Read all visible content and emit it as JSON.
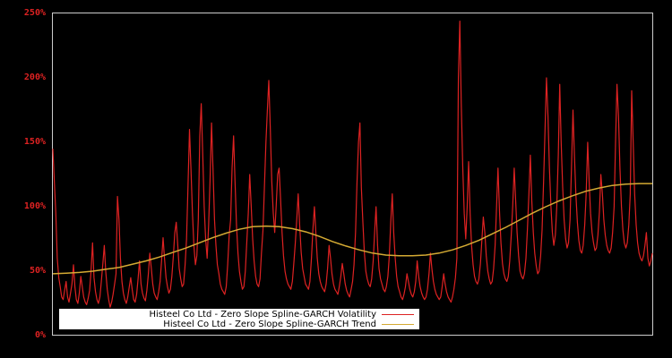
{
  "chart_data": {
    "type": "line",
    "title": "",
    "xlabel": "",
    "ylabel": "",
    "ylim": [
      0,
      250
    ],
    "y_ticks": [
      "0%",
      "50%",
      "100%",
      "150%",
      "200%",
      "250%"
    ],
    "grid": false,
    "legend_position": "bottom-left inside plot",
    "background": "#000000",
    "axis_color": "#cccccc",
    "tick_label_color": "#dd2222",
    "series": [
      {
        "name": "Histeel Co Ltd - Zero Slope Spline-GARCH Volatility",
        "color": "#dd2222",
        "values": [
          145,
          120,
          95,
          60,
          45,
          38,
          30,
          28,
          35,
          42,
          30,
          26,
          33,
          40,
          55,
          38,
          28,
          25,
          33,
          46,
          38,
          30,
          26,
          24,
          29,
          35,
          50,
          72,
          45,
          34,
          28,
          25,
          30,
          42,
          56,
          70,
          50,
          36,
          28,
          22,
          26,
          32,
          40,
          48,
          108,
          90,
          60,
          42,
          33,
          28,
          25,
          30,
          38,
          45,
          36,
          28,
          26,
          32,
          44,
          58,
          40,
          33,
          29,
          27,
          35,
          48,
          64,
          52,
          40,
          33,
          30,
          28,
          34,
          42,
          58,
          76,
          60,
          45,
          38,
          33,
          36,
          46,
          62,
          80,
          88,
          70,
          52,
          44,
          38,
          40,
          55,
          75,
          118,
          160,
          130,
          95,
          70,
          55,
          62,
          90,
          155,
          180,
          140,
          100,
          75,
          60,
          85,
          120,
          165,
          130,
          90,
          70,
          55,
          48,
          40,
          36,
          34,
          32,
          38,
          55,
          78,
          90,
          130,
          155,
          120,
          85,
          64,
          50,
          42,
          36,
          38,
          50,
          72,
          95,
          125,
          100,
          75,
          58,
          46,
          40,
          38,
          44,
          64,
          82,
          115,
          150,
          175,
          198,
          160,
          120,
          95,
          80,
          100,
          125,
          130,
          105,
          80,
          62,
          50,
          44,
          40,
          38,
          36,
          42,
          56,
          72,
          90,
          110,
          85,
          65,
          52,
          46,
          40,
          38,
          36,
          42,
          60,
          82,
          100,
          80,
          60,
          48,
          42,
          38,
          36,
          34,
          40,
          52,
          70,
          60,
          48,
          40,
          36,
          34,
          32,
          38,
          46,
          56,
          48,
          40,
          35,
          32,
          30,
          36,
          42,
          55,
          80,
          118,
          150,
          165,
          115,
          88,
          65,
          50,
          44,
          40,
          38,
          44,
          58,
          80,
          100,
          70,
          52,
          44,
          40,
          36,
          34,
          38,
          46,
          62,
          88,
          110,
          80,
          60,
          46,
          38,
          34,
          30,
          28,
          32,
          38,
          48,
          42,
          36,
          32,
          30,
          34,
          42,
          58,
          46,
          38,
          33,
          30,
          28,
          30,
          36,
          48,
          64,
          52,
          42,
          36,
          32,
          30,
          28,
          30,
          38,
          48,
          40,
          34,
          30,
          28,
          26,
          30,
          36,
          45,
          60,
          200,
          244,
          180,
          130,
          95,
          75,
          100,
          135,
          95,
          70,
          55,
          46,
          42,
          40,
          44,
          56,
          74,
          92,
          80,
          62,
          50,
          44,
          40,
          42,
          52,
          70,
          100,
          130,
          96,
          72,
          56,
          48,
          44,
          42,
          46,
          58,
          78,
          100,
          130,
          105,
          80,
          62,
          50,
          46,
          44,
          48,
          60,
          82,
          110,
          140,
          105,
          80,
          64,
          54,
          48,
          50,
          62,
          82,
          120,
          160,
          200,
          170,
          130,
          100,
          80,
          70,
          78,
          100,
          140,
          195,
          150,
          115,
          90,
          75,
          68,
          72,
          90,
          130,
          175,
          140,
          110,
          88,
          74,
          66,
          64,
          70,
          86,
          110,
          150,
          120,
          95,
          80,
          72,
          66,
          68,
          78,
          96,
          125,
          110,
          90,
          78,
          70,
          66,
          64,
          68,
          80,
          100,
          150,
          195,
          170,
          130,
          100,
          82,
          72,
          68,
          72,
          86,
          110,
          190,
          150,
          110,
          86,
          72,
          64,
          60,
          58,
          62,
          70,
          80,
          60,
          54,
          58,
          64
        ]
      },
      {
        "name": "Histeel Co Ltd - Zero Slope Spline-GARCH Trend",
        "color": "#d4aa33",
        "values": [
          48,
          48.5,
          49,
          50,
          51.5,
          53,
          55.5,
          58,
          61,
          64.5,
          68,
          72,
          76,
          79.5,
          82.5,
          84.5,
          85,
          84.5,
          83,
          80.5,
          77,
          73,
          69.5,
          66.5,
          64,
          62.5,
          62,
          62,
          62.5,
          64,
          66.5,
          70,
          74,
          79,
          84,
          89.5,
          95,
          100,
          104.5,
          108.5,
          112,
          114.5,
          116.5,
          117.5,
          118,
          118
        ]
      }
    ]
  },
  "legend": {
    "items": [
      {
        "label": "Histeel Co Ltd - Zero Slope Spline-GARCH Volatility",
        "color": "#dd2222"
      },
      {
        "label": "Histeel Co Ltd - Zero Slope Spline-GARCH Trend",
        "color": "#d4aa33"
      }
    ]
  }
}
